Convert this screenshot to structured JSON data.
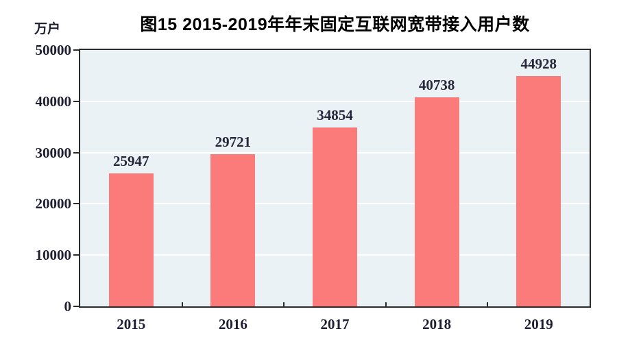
{
  "chart_data": {
    "type": "bar",
    "title": "图15 2015-2019年年末固定互联网宽带接入用户数",
    "ylabel": "万户",
    "xlabel": "",
    "categories": [
      "2015",
      "2016",
      "2017",
      "2018",
      "2019"
    ],
    "values": [
      25947,
      29721,
      34854,
      40738,
      44928
    ],
    "value_labels": [
      "25947",
      "29721",
      "34854",
      "40738",
      "44928"
    ],
    "ylim": [
      0,
      50000
    ],
    "ytick_step": 10000,
    "ytick_labels": [
      "0",
      "10000",
      "20000",
      "30000",
      "40000",
      "50000"
    ],
    "grid": "horizontal",
    "legend": "none",
    "colors": {
      "bar": "#FB7B7B",
      "plot_background": "#EBF2F5",
      "gridline": "#FFFFFF",
      "frame": "#2B2B2B",
      "label_text": "#1E1E32",
      "title_text": "#000000"
    }
  }
}
